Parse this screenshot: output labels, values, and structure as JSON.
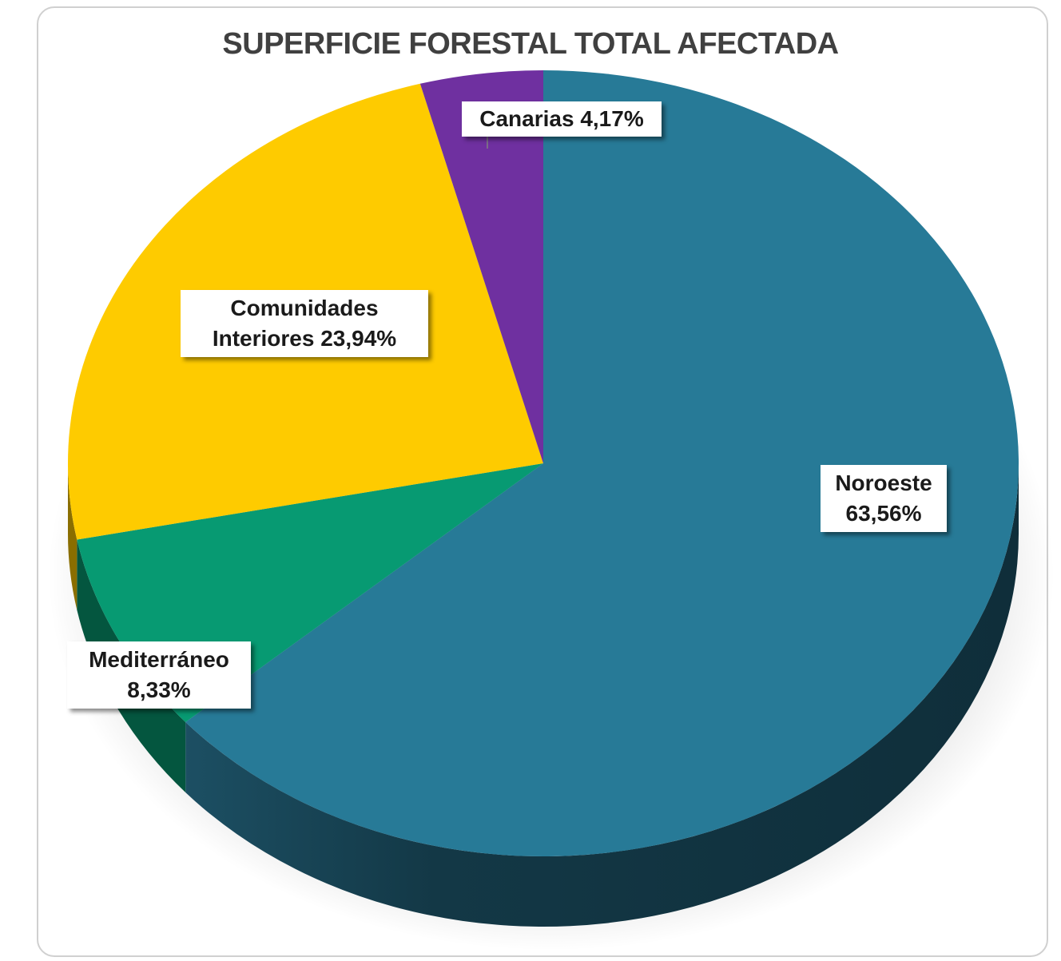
{
  "chart_data": {
    "type": "pie",
    "title": "SUPERFICIE FORESTAL TOTAL AFECTADA",
    "slices": [
      {
        "name": "Noroeste",
        "value": 63.56,
        "label": "Noroeste 63,56%",
        "color": "#277a97",
        "side_color": "#123646"
      },
      {
        "name": "Mediterráneo",
        "value": 8.33,
        "label": "Mediterráneo 8,33%",
        "color": "#079a72",
        "side_color": "#04563f"
      },
      {
        "name": "Comunidades Interiores",
        "value": 23.94,
        "label": "Comunidades Interiores 23,94%",
        "color": "#fecb00",
        "side_color": "#8a6e00"
      },
      {
        "name": "Canarias",
        "value": 4.17,
        "label": "Canarias 4,17%",
        "color": "#6f30a0",
        "side_color": "#3a1956"
      }
    ],
    "legend": "none"
  },
  "labels": {
    "noroeste_line1": "Noroeste",
    "noroeste_line2": "63,56%",
    "mediterraneo_line1": "Mediterráneo",
    "mediterraneo_line2": "8,33%",
    "comunidades_line1": "Comunidades",
    "comunidades_line2": "Interiores 23,94%",
    "canarias": "Canarias 4,17%"
  }
}
